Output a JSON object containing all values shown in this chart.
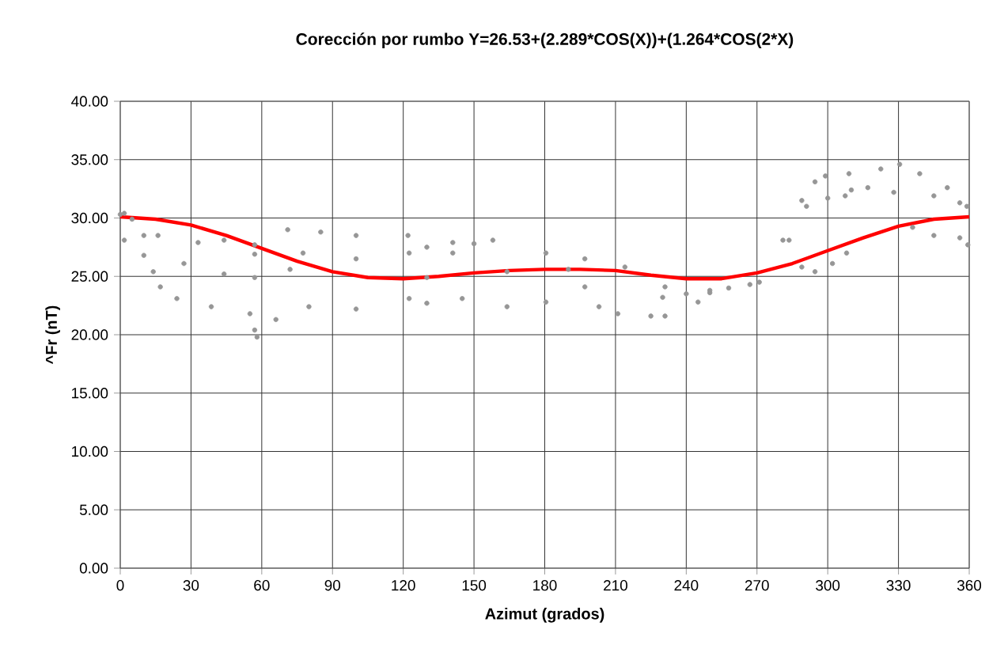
{
  "chart_data": {
    "type": "scatter",
    "title": "Corección por rumbo Y=26.53+(2.289*COS(X))+(1.264*COS(2*X)",
    "xlabel": "Azimut (grados)",
    "ylabel": "^Fr (nT)",
    "xlim": [
      0,
      360
    ],
    "xticks": [
      0,
      30,
      60,
      90,
      120,
      150,
      180,
      210,
      240,
      270,
      300,
      330,
      360
    ],
    "ylim": [
      0,
      40
    ],
    "yticks": [
      {
        "value": 0,
        "label": "0.00"
      },
      {
        "value": 5,
        "label": "5.00"
      },
      {
        "value": 10,
        "label": "10.00"
      },
      {
        "value": 15,
        "label": "15.00"
      },
      {
        "value": 20,
        "label": "20.00"
      },
      {
        "value": 25,
        "label": "25.00"
      },
      {
        "value": 30,
        "label": "30.00"
      },
      {
        "value": 35,
        "label": "35.00"
      },
      {
        "value": 40,
        "label": "40.00"
      }
    ],
    "grid": true,
    "series": [
      {
        "color": "#969696",
        "marker": "circle",
        "x": [
          1.7,
          16,
          33,
          44,
          57,
          77.5,
          100,
          122.5,
          141,
          71,
          85,
          100,
          122,
          141,
          158,
          180.5,
          197,
          214,
          231,
          250,
          267,
          1.7,
          10,
          27,
          44,
          57,
          72,
          130,
          164,
          190,
          197,
          203,
          211,
          225,
          231,
          10,
          14,
          17,
          24,
          38.6,
          55,
          57,
          58,
          66,
          80,
          100,
          122.5,
          130,
          145,
          164,
          180.5,
          230,
          240,
          245,
          250,
          258,
          271,
          281,
          289,
          294.6,
          299,
          309,
          322.5,
          330.5,
          339,
          350.7,
          359,
          283.6,
          289,
          294.6,
          302,
          308,
          307.4,
          317,
          328,
          345,
          356,
          336,
          345,
          356,
          359.4,
          291,
          300,
          310,
          0,
          5,
          57,
          130,
          150
        ],
        "values": [
          30.4,
          28.5,
          27.9,
          28.1,
          27.7,
          27.0,
          26.5,
          27.0,
          27.0,
          29.0,
          28.8,
          28.5,
          28.5,
          27.9,
          28.1,
          27.0,
          26.5,
          25.8,
          24.1,
          23.6,
          24.3,
          28.1,
          26.8,
          26.1,
          25.2,
          24.9,
          25.6,
          24.9,
          25.4,
          25.6,
          24.1,
          22.4,
          21.8,
          21.6,
          21.6,
          28.5,
          25.4,
          24.1,
          23.1,
          22.4,
          21.8,
          20.4,
          19.8,
          21.3,
          22.4,
          22.2,
          23.1,
          22.7,
          23.1,
          22.4,
          22.8,
          23.2,
          23.5,
          22.8,
          23.8,
          24.0,
          24.5,
          28.1,
          31.5,
          33.1,
          33.6,
          33.8,
          34.2,
          34.6,
          33.8,
          32.6,
          31.0,
          28.1,
          25.8,
          25.4,
          26.1,
          27.0,
          31.9,
          32.6,
          32.2,
          31.9,
          31.3,
          29.2,
          28.5,
          28.3,
          27.7,
          31.0,
          31.7,
          32.4,
          30.3,
          29.9,
          26.9,
          27.5,
          27.8
        ]
      },
      {
        "type": "line",
        "color": "#ff0000",
        "marker": "none",
        "x": [
          0,
          15,
          30,
          45,
          60,
          75,
          90,
          105,
          120,
          135,
          150,
          165,
          180,
          195,
          210,
          225,
          240,
          255,
          270,
          285,
          300,
          315,
          330,
          345,
          360
        ],
        "values": [
          30.1,
          29.9,
          29.4,
          28.5,
          27.4,
          26.3,
          25.4,
          24.9,
          24.8,
          25.0,
          25.3,
          25.5,
          25.6,
          25.6,
          25.5,
          25.1,
          24.8,
          24.8,
          25.3,
          26.1,
          27.2,
          28.3,
          29.3,
          29.9,
          30.1
        ]
      }
    ]
  }
}
